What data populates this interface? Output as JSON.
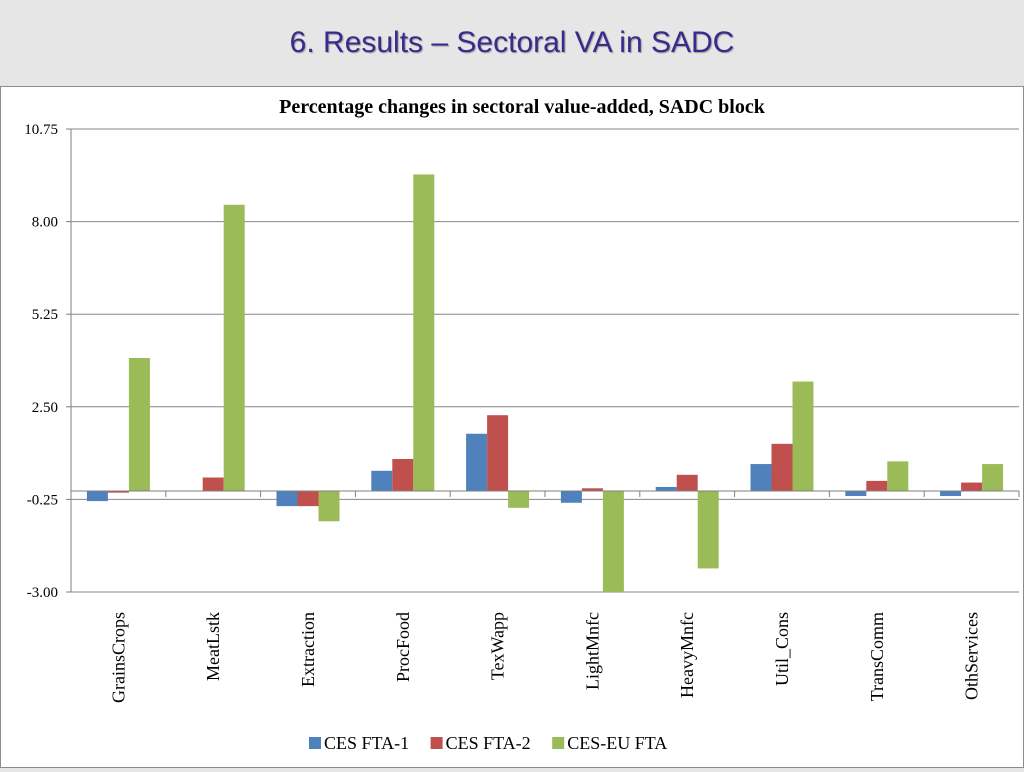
{
  "slide": {
    "title": "6. Results – Sectoral VA in SADC"
  },
  "chart_data": {
    "type": "bar",
    "title": "Percentage changes in sectoral value-added, SADC block",
    "xlabel": "",
    "ylabel": "",
    "ylim": [
      -3.0,
      10.75
    ],
    "yticks": [
      10.75,
      8.0,
      5.25,
      2.5,
      -0.25,
      -3.0
    ],
    "ytick_labels": [
      "10.75",
      "8.00",
      "5.25",
      "2.50",
      "-0.25",
      "-3.00"
    ],
    "grid": true,
    "legend_position": "bottom",
    "categories": [
      "GrainsCrops",
      "MeatLstk",
      "Extraction",
      "ProcFood",
      "TexWapp",
      "LightMnfc",
      "HeavyMnfc",
      "Util_Cons",
      "TransComm",
      "OthServices"
    ],
    "series": [
      {
        "name": "CES FTA-1",
        "color": "#4f81bd",
        "values": [
          -0.3,
          0.0,
          -0.45,
          0.6,
          1.7,
          -0.35,
          0.12,
          0.8,
          -0.15,
          -0.15
        ]
      },
      {
        "name": "CES FTA-2",
        "color": "#c0504d",
        "values": [
          -0.05,
          0.4,
          -0.45,
          0.95,
          2.25,
          0.08,
          0.48,
          1.4,
          0.3,
          0.25
        ]
      },
      {
        "name": "CES-EU FTA",
        "color": "#9bbb59",
        "values": [
          3.95,
          8.5,
          -0.9,
          9.4,
          -0.5,
          -3.0,
          -2.3,
          3.25,
          0.88,
          0.8
        ]
      }
    ]
  }
}
